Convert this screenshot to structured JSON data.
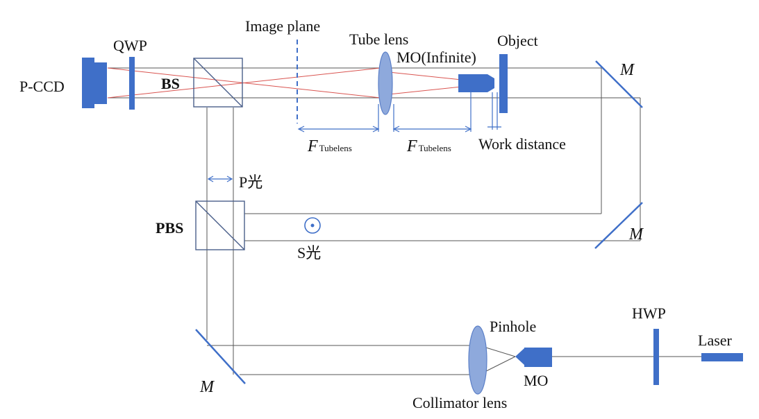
{
  "labels": {
    "p_ccd": "P-CCD",
    "qwp": "QWP",
    "bs": "BS",
    "image_plane": "Image plane",
    "tube_lens": "Tube lens",
    "mo_infinite": "MO(Infinite)",
    "object": "Object",
    "mirror": "M",
    "f_main": "F",
    "f_sub": "Tubelens",
    "work_distance": "Work distance",
    "p_light": "P光",
    "pbs": "PBS",
    "s_light": "S光",
    "pinhole": "Pinhole",
    "hwp": "HWP",
    "laser": "Laser",
    "mo": "MO",
    "collimator_lens": "Collimator lens"
  },
  "colors": {
    "component": "#3f6fc8",
    "lens_fill": "#8ea9dc",
    "beam": "#555555",
    "object_beam": "#d9534f"
  }
}
